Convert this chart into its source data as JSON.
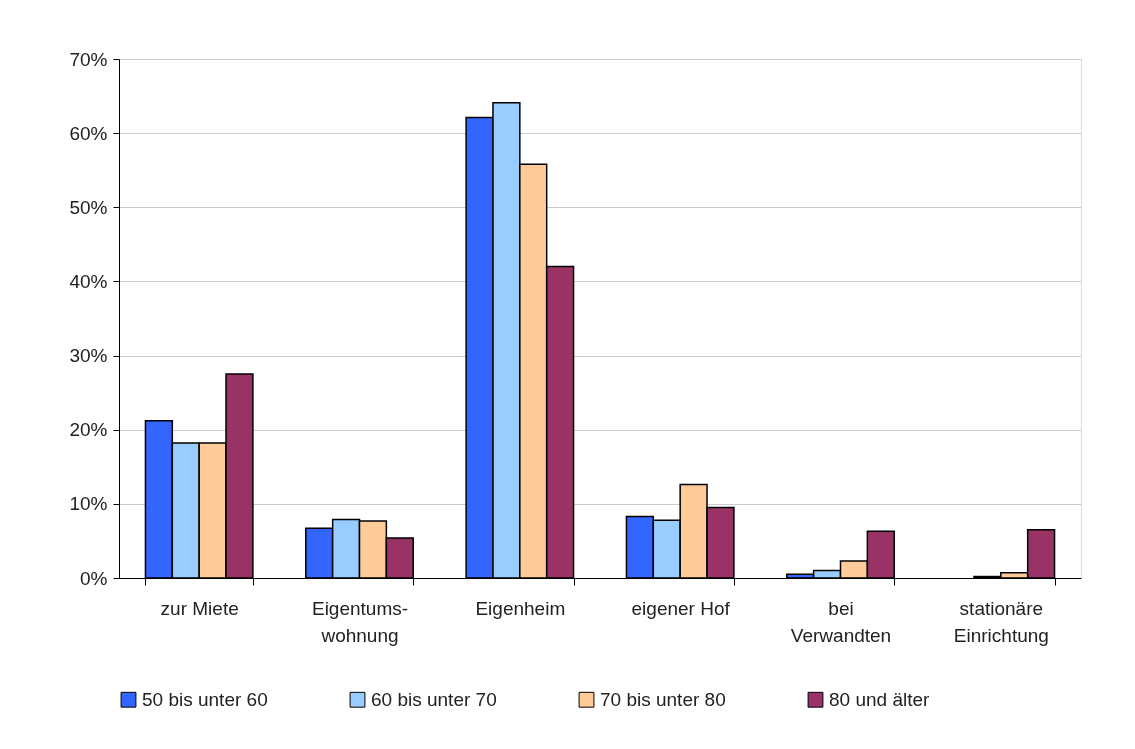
{
  "chart_data": {
    "type": "bar",
    "categories": [
      "zur Miete",
      "Eigentums-\nwohnung",
      "Eigenheim",
      "eigener Hof",
      "bei\nVerwandten",
      "stationäre\nEinrichtung"
    ],
    "series": [
      {
        "name": "50 bis unter 60",
        "color": "#3366ff",
        "values": [
          21.2,
          6.7,
          62.1,
          8.3,
          0.5,
          0
        ]
      },
      {
        "name": "60 bis unter 70",
        "color": "#99ccff",
        "values": [
          18.2,
          7.9,
          64.1,
          7.8,
          1.0,
          0.2
        ]
      },
      {
        "name": "70 bis unter 80",
        "color": "#ffcc99",
        "values": [
          18.2,
          7.7,
          55.8,
          12.6,
          2.3,
          0.7
        ]
      },
      {
        "name": "80 und älter",
        "color": "#993366",
        "values": [
          27.5,
          5.4,
          42.0,
          9.5,
          6.3,
          6.5
        ]
      }
    ],
    "ylim": [
      0,
      70
    ],
    "yticks": [
      {
        "value": 0,
        "label": "0%"
      },
      {
        "value": 10,
        "label": "10%"
      },
      {
        "value": 20,
        "label": "20%"
      },
      {
        "value": 30,
        "label": "30%"
      },
      {
        "value": 40,
        "label": "40%"
      },
      {
        "value": 50,
        "label": "50%"
      },
      {
        "value": 60,
        "label": "60%"
      },
      {
        "value": 70,
        "label": "70%"
      }
    ],
    "grid": "y",
    "legend": "bottom"
  }
}
